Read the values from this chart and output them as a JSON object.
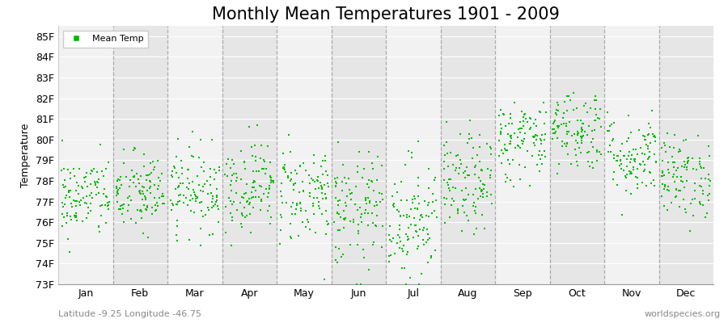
{
  "title": "Monthly Mean Temperatures 1901 - 2009",
  "ylabel": "Temperature",
  "xlabel_months": [
    "Jan",
    "Feb",
    "Mar",
    "Apr",
    "May",
    "Jun",
    "Jul",
    "Aug",
    "Sep",
    "Oct",
    "Nov",
    "Dec"
  ],
  "ylim": [
    73,
    85.5
  ],
  "yticks": [
    73,
    74,
    75,
    76,
    77,
    78,
    79,
    80,
    81,
    82,
    83,
    84,
    85
  ],
  "ytick_labels": [
    "73F",
    "74F",
    "75F",
    "76F",
    "77F",
    "78F",
    "79F",
    "80F",
    "81F",
    "82F",
    "83F",
    "84F",
    "85F"
  ],
  "marker_color": "#00bb00",
  "band_color_light": "#f2f2f2",
  "band_color_dark": "#e6e6e6",
  "dashed_line_color": "#999999",
  "title_fontsize": 15,
  "axis_label_fontsize": 9,
  "tick_fontsize": 9,
  "legend_label": "Mean Temp",
  "subtitle_left": "Latitude -9.25 Longitude -46.75",
  "subtitle_right": "worldspecies.org",
  "n_years": 109,
  "monthly_means": [
    77.2,
    77.4,
    77.6,
    77.8,
    77.4,
    76.5,
    76.2,
    77.8,
    80.0,
    80.5,
    79.2,
    78.2
  ],
  "monthly_stds": [
    1.0,
    1.0,
    1.0,
    1.1,
    1.2,
    1.4,
    1.5,
    1.2,
    1.0,
    1.0,
    1.0,
    1.0
  ],
  "seed": 42
}
